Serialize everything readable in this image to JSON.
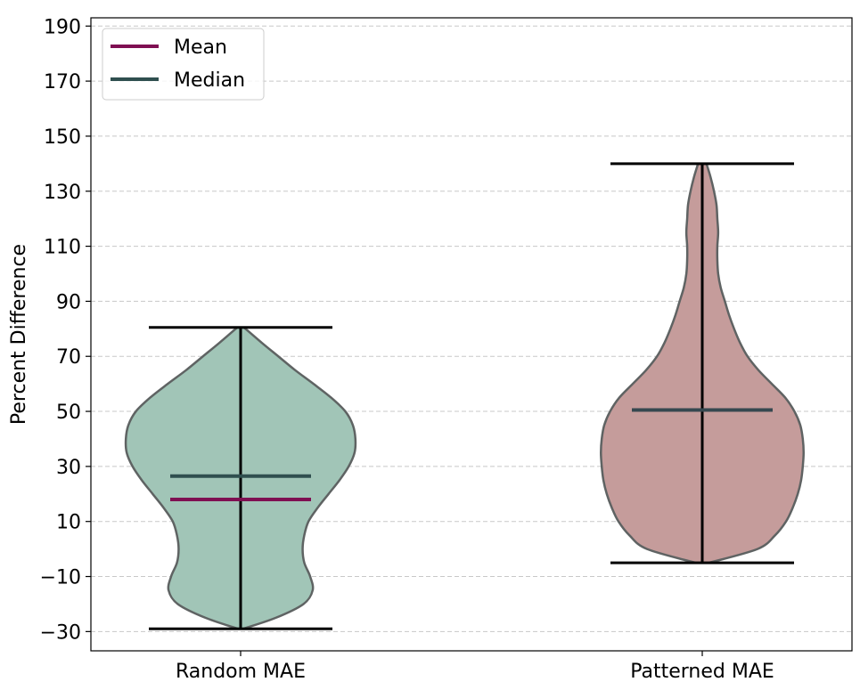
{
  "chart_data": {
    "type": "violin",
    "categories": [
      "Random MAE",
      "Patterned MAE"
    ],
    "ylabel": "Percent Difference",
    "xlabel": "",
    "title": "",
    "ylim": [
      -37,
      193
    ],
    "yticks": [
      -30,
      -10,
      10,
      30,
      50,
      70,
      90,
      110,
      130,
      150,
      170,
      190
    ],
    "ytick_labels": [
      "−30",
      "−10",
      "10",
      "30",
      "50",
      "70",
      "90",
      "110",
      "130",
      "150",
      "170",
      "190"
    ],
    "grid": "y-dashed",
    "legend": {
      "placement": "top-left",
      "entries": [
        {
          "label": "Mean",
          "color": "#7f0f52"
        },
        {
          "label": "Median",
          "color": "#2f4f4f"
        }
      ]
    },
    "violins": [
      {
        "name": "Random MAE",
        "fill": "#a1c5b7",
        "min": -29,
        "max": 80.5,
        "mean": 18,
        "median": 26.5,
        "profile": [
          [
            -29,
            0.03
          ],
          [
            -25,
            0.42
          ],
          [
            -20,
            0.75
          ],
          [
            -15,
            0.86
          ],
          [
            -10,
            0.83
          ],
          [
            -5,
            0.76
          ],
          [
            0,
            0.74
          ],
          [
            5,
            0.76
          ],
          [
            10,
            0.81
          ],
          [
            15,
            0.92
          ],
          [
            20,
            1.05
          ],
          [
            25,
            1.18
          ],
          [
            30,
            1.29
          ],
          [
            35,
            1.36
          ],
          [
            40,
            1.37
          ],
          [
            45,
            1.34
          ],
          [
            50,
            1.25
          ],
          [
            55,
            1.08
          ],
          [
            60,
            0.87
          ],
          [
            65,
            0.65
          ],
          [
            70,
            0.45
          ],
          [
            75,
            0.25
          ],
          [
            80.5,
            0.04
          ]
        ]
      },
      {
        "name": "Patterned MAE",
        "fill": "#c59c9b",
        "min": -5,
        "max": 140,
        "mean": 50.5,
        "median": 50.5,
        "profile": [
          [
            -5,
            0.08
          ],
          [
            0,
            0.66
          ],
          [
            5,
            0.87
          ],
          [
            10,
            1.0
          ],
          [
            15,
            1.08
          ],
          [
            20,
            1.14
          ],
          [
            25,
            1.18
          ],
          [
            30,
            1.2
          ],
          [
            35,
            1.21
          ],
          [
            40,
            1.2
          ],
          [
            45,
            1.17
          ],
          [
            50,
            1.1
          ],
          [
            55,
            0.99
          ],
          [
            60,
            0.83
          ],
          [
            65,
            0.67
          ],
          [
            70,
            0.54
          ],
          [
            75,
            0.45
          ],
          [
            80,
            0.38
          ],
          [
            85,
            0.32
          ],
          [
            90,
            0.27
          ],
          [
            95,
            0.22
          ],
          [
            100,
            0.19
          ],
          [
            105,
            0.18
          ],
          [
            110,
            0.18
          ],
          [
            115,
            0.19
          ],
          [
            120,
            0.18
          ],
          [
            125,
            0.17
          ],
          [
            130,
            0.14
          ],
          [
            135,
            0.1
          ],
          [
            140,
            0.05
          ]
        ]
      }
    ]
  }
}
